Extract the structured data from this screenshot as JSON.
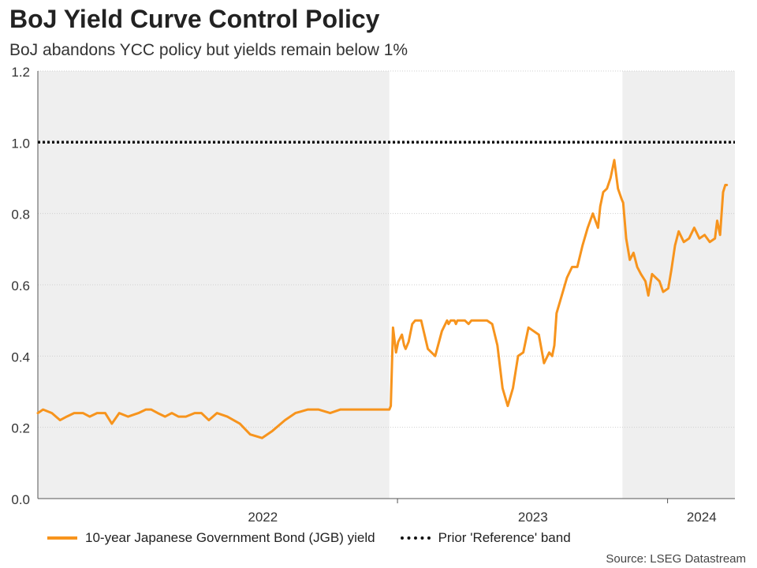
{
  "header": {
    "title": "BoJ Yield Curve Control Policy",
    "subtitle": "BoJ abandons YCC policy but yields remain below 1%"
  },
  "footer": {
    "source": "Source: LSEG Datastream"
  },
  "colors": {
    "series": "#f7941d",
    "reference": "#111111",
    "shade": "#efefef"
  },
  "chart_data": {
    "type": "line",
    "title": "BoJ Yield Curve Control Policy",
    "subtitle": "BoJ abandons YCC policy but yields remain below 1%",
    "xlabel": "",
    "ylabel": "",
    "ylim": [
      0,
      1.2
    ],
    "xlim": [
      "2021-09-01",
      "2024-03-31"
    ],
    "yticks": [
      "0.0",
      "0.2",
      "0.4",
      "0.6",
      "0.8",
      "1.0",
      "1.2"
    ],
    "xtick_labels": [
      {
        "label": "2022",
        "date": "2022-01-01"
      },
      {
        "label": "2023",
        "date": "2023-01-01"
      },
      {
        "label": "2024",
        "date": "2024-01-01"
      }
    ],
    "shaded_periods": [
      {
        "from": "2021-09-01",
        "to": "2022-12-20"
      },
      {
        "from": "2023-10-31",
        "to": "2024-03-31"
      }
    ],
    "grid": true,
    "legend": "bottom",
    "series": [
      {
        "name": "10-year Japanese Government Bond (JGB) yield",
        "style": "line",
        "x": [
          "2021-09-01",
          "2021-09-08",
          "2021-09-20",
          "2021-10-01",
          "2021-10-10",
          "2021-10-20",
          "2021-11-01",
          "2021-11-10",
          "2021-11-20",
          "2021-12-01",
          "2021-12-10",
          "2021-12-20",
          "2022-01-01",
          "2022-01-15",
          "2022-01-25",
          "2022-02-01",
          "2022-02-10",
          "2022-02-20",
          "2022-03-01",
          "2022-03-10",
          "2022-03-20",
          "2022-04-01",
          "2022-04-10",
          "2022-04-20",
          "2022-05-01",
          "2022-05-15",
          "2022-06-01",
          "2022-06-15",
          "2022-07-01",
          "2022-07-15",
          "2022-08-01",
          "2022-08-15",
          "2022-09-01",
          "2022-09-15",
          "2022-10-01",
          "2022-10-15",
          "2022-11-01",
          "2022-11-15",
          "2022-12-01",
          "2022-12-12",
          "2022-12-20",
          "2022-12-22",
          "2022-12-25",
          "2022-12-29",
          "2023-01-01",
          "2023-01-06",
          "2023-01-09",
          "2023-01-11",
          "2023-01-15",
          "2023-01-20",
          "2023-01-24",
          "2023-01-27",
          "2023-02-01",
          "2023-02-10",
          "2023-02-20",
          "2023-03-01",
          "2023-03-08",
          "2023-03-10",
          "2023-03-13",
          "2023-03-15",
          "2023-03-18",
          "2023-03-20",
          "2023-03-22",
          "2023-03-24",
          "2023-03-28",
          "2023-04-01",
          "2023-04-06",
          "2023-04-10",
          "2023-04-15",
          "2023-04-20",
          "2023-04-25",
          "2023-05-01",
          "2023-05-08",
          "2023-05-15",
          "2023-05-22",
          "2023-05-29",
          "2023-06-05",
          "2023-06-12",
          "2023-06-19",
          "2023-06-26",
          "2023-07-03",
          "2023-07-10",
          "2023-07-17",
          "2023-07-24",
          "2023-07-28",
          "2023-07-31",
          "2023-08-03",
          "2023-08-10",
          "2023-08-17",
          "2023-08-24",
          "2023-08-31",
          "2023-09-07",
          "2023-09-14",
          "2023-09-21",
          "2023-09-28",
          "2023-10-01",
          "2023-10-05",
          "2023-10-10",
          "2023-10-15",
          "2023-10-20",
          "2023-10-25",
          "2023-10-30",
          "2023-11-01",
          "2023-11-05",
          "2023-11-10",
          "2023-11-15",
          "2023-11-20",
          "2023-11-25",
          "2023-12-01",
          "2023-12-05",
          "2023-12-10",
          "2023-12-15",
          "2023-12-20",
          "2023-12-25",
          "2024-01-01",
          "2024-01-05",
          "2024-01-10",
          "2024-01-15",
          "2024-01-22",
          "2024-01-29",
          "2024-02-05",
          "2024-02-12",
          "2024-02-19",
          "2024-02-26",
          "2024-03-04",
          "2024-03-07",
          "2024-03-11",
          "2024-03-13",
          "2024-03-15",
          "2024-03-18",
          "2024-03-20"
        ],
        "y": [
          0.24,
          0.25,
          0.24,
          0.22,
          0.23,
          0.24,
          0.24,
          0.23,
          0.24,
          0.24,
          0.21,
          0.24,
          0.23,
          0.24,
          0.25,
          0.25,
          0.24,
          0.23,
          0.24,
          0.23,
          0.23,
          0.24,
          0.24,
          0.22,
          0.24,
          0.23,
          0.21,
          0.18,
          0.17,
          0.19,
          0.22,
          0.24,
          0.25,
          0.25,
          0.24,
          0.25,
          0.25,
          0.25,
          0.25,
          0.25,
          0.25,
          0.26,
          0.48,
          0.41,
          0.44,
          0.46,
          0.43,
          0.42,
          0.44,
          0.49,
          0.5,
          0.5,
          0.5,
          0.42,
          0.4,
          0.47,
          0.5,
          0.49,
          0.5,
          0.5,
          0.5,
          0.49,
          0.5,
          0.5,
          0.5,
          0.5,
          0.49,
          0.5,
          0.5,
          0.5,
          0.5,
          0.5,
          0.49,
          0.43,
          0.31,
          0.26,
          0.31,
          0.4,
          0.41,
          0.48,
          0.47,
          0.46,
          0.38,
          0.41,
          0.4,
          0.43,
          0.52,
          0.57,
          0.62,
          0.65,
          0.65,
          0.71,
          0.76,
          0.8,
          0.76,
          0.82,
          0.86,
          0.87,
          0.9,
          0.95,
          0.87,
          0.84,
          0.83,
          0.73,
          0.67,
          0.69,
          0.65,
          0.63,
          0.61,
          0.57,
          0.63,
          0.62,
          0.61,
          0.58,
          0.59,
          0.64,
          0.71,
          0.75,
          0.72,
          0.73,
          0.76,
          0.73,
          0.74,
          0.72,
          0.73,
          0.78,
          0.74,
          0.8,
          0.86,
          0.88,
          0.88
        ],
        "color": "#f7941d"
      },
      {
        "name": "Prior 'Reference' band",
        "style": "dotted",
        "x": [
          "2021-09-01",
          "2024-03-31"
        ],
        "y": [
          1.0,
          1.0
        ],
        "color": "#111111"
      }
    ]
  }
}
